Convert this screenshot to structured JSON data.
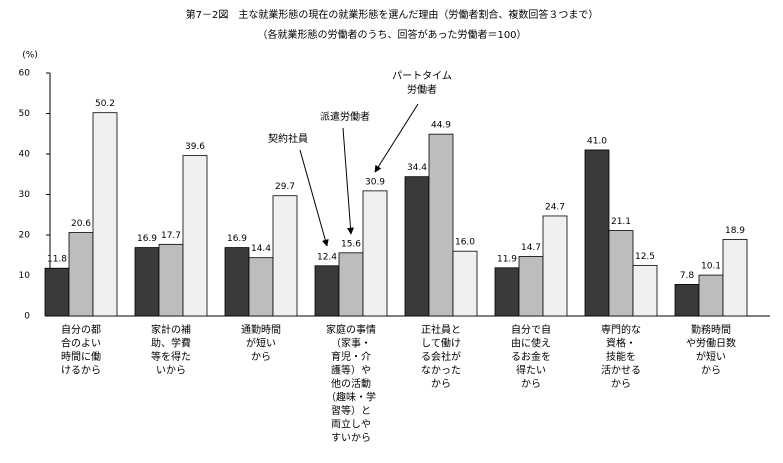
{
  "chart_data": {
    "type": "bar",
    "title": "第7－2図　主な就業形態の現在の就業形態を選んだ理由（労働者割合、複数回答３つまで）",
    "subtitle": "（各就業形態の労働者のうち、回答があった労働者＝100）",
    "y_label": "(%)",
    "categories": [
      [
        "自分の都",
        "合のよい",
        "時間に働",
        "けるから"
      ],
      [
        "家計の補",
        "助、学費",
        "等を得た",
        "いから"
      ],
      [
        "通勤時間",
        "が短い",
        "から"
      ],
      [
        "家庭の事情",
        "（家事・",
        "育児・介",
        "護等）や",
        "他の活動",
        "（趣味・学",
        "習等）と",
        "両立しや",
        "すいから"
      ],
      [
        "正社員と",
        "して働け",
        "る会社が",
        "なかった",
        "から"
      ],
      [
        "自分で自",
        "由に使え",
        "るお金を",
        "得たい",
        "から"
      ],
      [
        "専門的な",
        "資格・",
        "技能を",
        "活かせる",
        "から"
      ],
      [
        "勤務時間",
        "や労働日数",
        "が短い",
        "から"
      ]
    ],
    "series": [
      {
        "name": "契約社員",
        "color": "#3a3a3a",
        "values": [
          11.8,
          16.9,
          16.9,
          12.4,
          34.4,
          11.9,
          41.0,
          7.8
        ],
        "value_labels": [
          "11.8",
          "16.9",
          "16.9",
          "12.4",
          "34.4",
          "11.9",
          "41.0",
          "7.8"
        ]
      },
      {
        "name": "派遣労働者",
        "color": "#bdbdbd",
        "values": [
          20.6,
          17.7,
          14.4,
          15.6,
          44.9,
          14.7,
          21.1,
          10.1
        ],
        "value_labels": [
          "20.6",
          "17.7",
          "14.4",
          "15.6",
          "44.9",
          "14.7",
          "21.1",
          "10.1"
        ]
      },
      {
        "name": "パートタイム労働者",
        "color": "#f0f0f0",
        "values": [
          50.2,
          39.6,
          29.7,
          30.9,
          16.0,
          24.7,
          12.5,
          18.9
        ],
        "value_labels": [
          "50.2",
          "39.6",
          "29.7",
          "30.9",
          "16.0",
          "24.7",
          "12.5",
          "18.9"
        ]
      }
    ],
    "ylim": [
      0,
      60
    ],
    "yticks": [
      0,
      10,
      20,
      30,
      40,
      50,
      60
    ],
    "grid": false
  }
}
